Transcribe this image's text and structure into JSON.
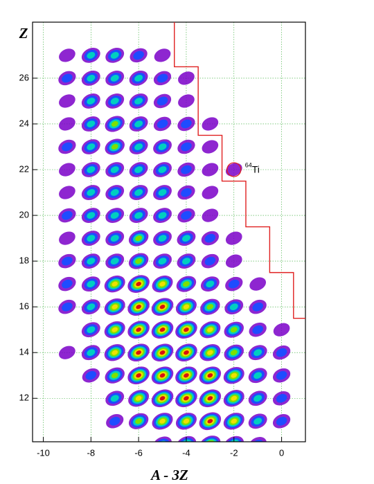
{
  "chart_data": {
    "type": "heatmap",
    "x_label": "A - 3Z",
    "y_label": "Z",
    "xlim": [
      -10.45,
      1.0
    ],
    "ylim": [
      10.1,
      28.45
    ],
    "xticks": [
      -10,
      -8,
      -6,
      -4,
      -2,
      0
    ],
    "yticks": [
      12,
      14,
      16,
      18,
      20,
      22,
      24,
      26
    ],
    "grid": true,
    "level_colors": [
      "#7a00c8",
      "#1e4cff",
      "#00cfc0",
      "#7ee000",
      "#f0e000",
      "#d81010"
    ],
    "rows": [
      {
        "z": 27,
        "x": [
          -9,
          -8,
          -7,
          -6,
          -5
        ],
        "levels": [
          1,
          3,
          3,
          2,
          1
        ]
      },
      {
        "z": 26,
        "x": [
          -9,
          -8,
          -7,
          -6,
          -5,
          -4
        ],
        "levels": [
          2,
          3,
          3,
          3,
          2,
          1
        ]
      },
      {
        "z": 25,
        "x": [
          -9,
          -8,
          -7,
          -6,
          -5,
          -4
        ],
        "levels": [
          1,
          3,
          3,
          3,
          2,
          1
        ]
      },
      {
        "z": 24,
        "x": [
          -9,
          -8,
          -7,
          -6,
          -5,
          -4,
          -3
        ],
        "levels": [
          1,
          3,
          4,
          3,
          2,
          2,
          1
        ]
      },
      {
        "z": 23,
        "x": [
          -9,
          -8,
          -7,
          -6,
          -5,
          -4,
          -3
        ],
        "levels": [
          2,
          3,
          4,
          3,
          3,
          2,
          1
        ]
      },
      {
        "z": 22,
        "x": [
          -9,
          -8,
          -7,
          -6,
          -5,
          -4,
          -3,
          -2
        ],
        "levels": [
          1,
          3,
          3,
          3,
          3,
          2,
          1,
          1
        ]
      },
      {
        "z": 21,
        "x": [
          -9,
          -8,
          -7,
          -6,
          -5,
          -4,
          -3
        ],
        "levels": [
          1,
          3,
          3,
          3,
          3,
          2,
          1
        ]
      },
      {
        "z": 20,
        "x": [
          -9,
          -8,
          -7,
          -6,
          -5,
          -4,
          -3
        ],
        "levels": [
          2,
          3,
          3,
          3,
          3,
          2,
          1
        ]
      },
      {
        "z": 19,
        "x": [
          -9,
          -8,
          -7,
          -6,
          -5,
          -4,
          -3,
          -2
        ],
        "levels": [
          1,
          3,
          3,
          4,
          3,
          3,
          2,
          1
        ]
      },
      {
        "z": 18,
        "x": [
          -9,
          -8,
          -7,
          -6,
          -5,
          -4,
          -3,
          -2
        ],
        "levels": [
          2,
          3,
          3,
          4,
          3,
          3,
          2,
          1
        ]
      },
      {
        "z": 17,
        "x": [
          -9,
          -8,
          -7,
          -6,
          -5,
          -4,
          -3,
          -2,
          -1
        ],
        "levels": [
          2,
          3,
          5,
          6,
          5,
          4,
          3,
          2,
          1
        ]
      },
      {
        "z": 16,
        "x": [
          -9,
          -8,
          -7,
          -6,
          -5,
          -4,
          -3,
          -2,
          -1
        ],
        "levels": [
          2,
          3,
          5,
          6,
          6,
          5,
          4,
          3,
          2
        ]
      },
      {
        "z": 15,
        "x": [
          -8,
          -7,
          -6,
          -5,
          -4,
          -3,
          -2,
          -1,
          0
        ],
        "levels": [
          3,
          5,
          6,
          6,
          6,
          5,
          4,
          2,
          1
        ]
      },
      {
        "z": 14,
        "x": [
          -9,
          -8,
          -7,
          -6,
          -5,
          -4,
          -3,
          -2,
          -1,
          0
        ],
        "levels": [
          1,
          3,
          5,
          6,
          6,
          6,
          5,
          4,
          3,
          2
        ]
      },
      {
        "z": 13,
        "x": [
          -8,
          -7,
          -6,
          -5,
          -4,
          -3,
          -2,
          -1,
          0
        ],
        "levels": [
          2,
          4,
          6,
          6,
          6,
          6,
          5,
          3,
          2
        ]
      },
      {
        "z": 12,
        "x": [
          -7,
          -6,
          -5,
          -4,
          -3,
          -2,
          -1,
          0
        ],
        "levels": [
          3,
          5,
          6,
          6,
          6,
          5,
          3,
          2
        ]
      },
      {
        "z": 11,
        "x": [
          -7,
          -6,
          -5,
          -4,
          -3,
          -2,
          -1,
          0
        ],
        "levels": [
          2,
          4,
          5,
          5,
          6,
          5,
          3,
          2
        ]
      },
      {
        "z": 10,
        "x": [
          -5,
          -4,
          -3,
          -2,
          -1
        ],
        "levels": [
          3,
          4,
          5,
          4,
          2
        ]
      }
    ],
    "boundary": {
      "color": "#e02020",
      "x": [
        -4.5,
        -4.5,
        -3.5,
        -3.5,
        -2.5,
        -2.5,
        -1.5,
        -1.5,
        -0.5,
        -0.5,
        0.5,
        0.5,
        1.0
      ],
      "y": [
        28.45,
        26.5,
        26.5,
        23.5,
        23.5,
        21.5,
        21.5,
        19.5,
        19.5,
        17.5,
        17.5,
        15.5,
        15.5
      ]
    },
    "annotation": {
      "x": -2,
      "y": 22,
      "mass": "64",
      "label": "Ti",
      "color": "#e02020"
    }
  }
}
